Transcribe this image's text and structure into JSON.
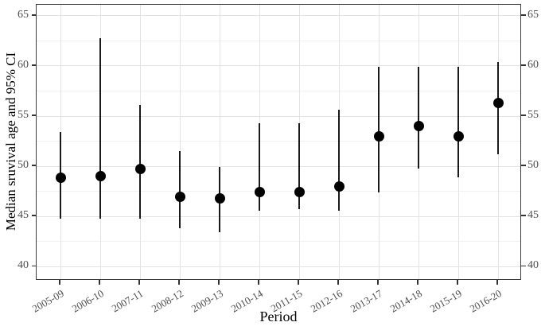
{
  "figure": {
    "y_axis_title": "Median sruvival age and 95% CI",
    "x_axis_title": "Period"
  },
  "chart_data": {
    "type": "scatter",
    "subtype": "point-estimate-with-95ci-errorbars",
    "title": "",
    "xlabel": "Period",
    "ylabel": "Median sruvival age and 95% CI",
    "categories": [
      "2005-09",
      "2006-10",
      "2007-11",
      "2008-12",
      "2009-13",
      "2010-14",
      "2011-15",
      "2012-16",
      "2013-17",
      "2014-18",
      "2015-19",
      "2016-20"
    ],
    "series": [
      {
        "name": "Median survival age",
        "values": [
          48.9,
          49.0,
          49.7,
          47.0,
          46.8,
          47.4,
          47.4,
          48.0,
          53.0,
          54.0,
          53.0,
          56.3
        ],
        "ci_low": [
          44.8,
          44.8,
          44.8,
          43.8,
          43.4,
          45.6,
          45.7,
          45.6,
          47.4,
          49.8,
          48.9,
          51.2
        ],
        "ci_high": [
          53.4,
          62.8,
          56.1,
          51.5,
          49.9,
          54.3,
          54.3,
          55.6,
          59.9,
          59.9,
          59.9,
          60.4
        ]
      }
    ],
    "ylim": [
      38.6,
      66.1
    ],
    "yticks": [
      40,
      45,
      50,
      55,
      60,
      65
    ],
    "yticks_minor": [
      42.5,
      47.5,
      52.5,
      57.5,
      62.5
    ],
    "grid": true,
    "legend": false,
    "x_label_angle_deg": -30,
    "colors": {
      "point": "#000000",
      "errorbar": "#1a1a1a",
      "grid_major": "#e3e3e3",
      "grid_minor": "#f1f1f1",
      "panel_border": "#3c3c3c",
      "tick_mark": "#333333",
      "tick_label": "#4d4d4d",
      "axis_title": "#000000",
      "background": "#ffffff"
    }
  }
}
